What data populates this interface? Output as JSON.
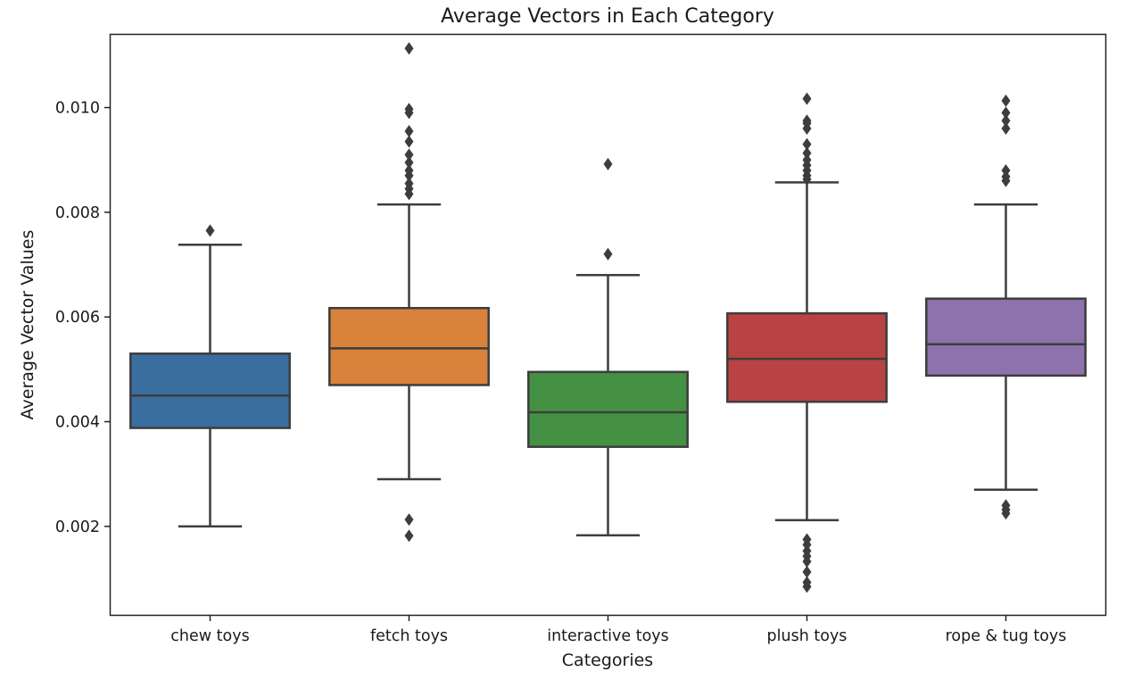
{
  "chart_data": {
    "type": "box",
    "title": "Average Vectors in Each Category",
    "xlabel": "Categories",
    "ylabel": "Average Vector Values",
    "ylim": [
      0.00031,
      0.01139
    ],
    "yticks": [
      0.002,
      0.004,
      0.006,
      0.008,
      0.01
    ],
    "ytick_labels": [
      "0.002",
      "0.004",
      "0.006",
      "0.008",
      "0.010"
    ],
    "grid": false,
    "legend": "none",
    "categories": [
      "chew toys",
      "fetch toys",
      "interactive toys",
      "plush toys",
      "rope & tug toys"
    ],
    "boxes": [
      {
        "category": "chew toys",
        "color": "#3a6e9f",
        "whisker_low": 0.002,
        "q1": 0.00388,
        "median": 0.0045,
        "q3": 0.0053,
        "whisker_high": 0.00738,
        "outliers": [
          0.00765
        ]
      },
      {
        "category": "fetch toys",
        "color": "#d8823b",
        "whisker_low": 0.0029,
        "q1": 0.0047,
        "median": 0.0054,
        "q3": 0.00617,
        "whisker_high": 0.00815,
        "outliers": [
          0.00182,
          0.00213,
          0.00835,
          0.00845,
          0.00855,
          0.0087,
          0.0088,
          0.00895,
          0.0091,
          0.00935,
          0.00955,
          0.0099,
          0.00997,
          0.01113
        ]
      },
      {
        "category": "interactive toys",
        "color": "#449144",
        "whisker_low": 0.00183,
        "q1": 0.00352,
        "median": 0.00418,
        "q3": 0.00495,
        "whisker_high": 0.0068,
        "outliers": [
          0.0072,
          0.00892
        ]
      },
      {
        "category": "plush toys",
        "color": "#b94343",
        "whisker_low": 0.00212,
        "q1": 0.00438,
        "median": 0.0052,
        "q3": 0.00607,
        "whisker_high": 0.00857,
        "outliers": [
          0.00085,
          0.00093,
          0.00113,
          0.00133,
          0.00143,
          0.00153,
          0.00165,
          0.00175,
          0.00863,
          0.0087,
          0.0088,
          0.0089,
          0.009,
          0.00913,
          0.0093,
          0.0096,
          0.0097,
          0.00975,
          0.01017
        ]
      },
      {
        "category": "rope & tug toys",
        "color": "#8d72ad",
        "whisker_low": 0.0027,
        "q1": 0.00488,
        "median": 0.00548,
        "q3": 0.00635,
        "whisker_high": 0.00815,
        "outliers": [
          0.00225,
          0.00232,
          0.0024,
          0.0086,
          0.00868,
          0.0088,
          0.0096,
          0.00975,
          0.0099,
          0.01013
        ]
      }
    ]
  }
}
